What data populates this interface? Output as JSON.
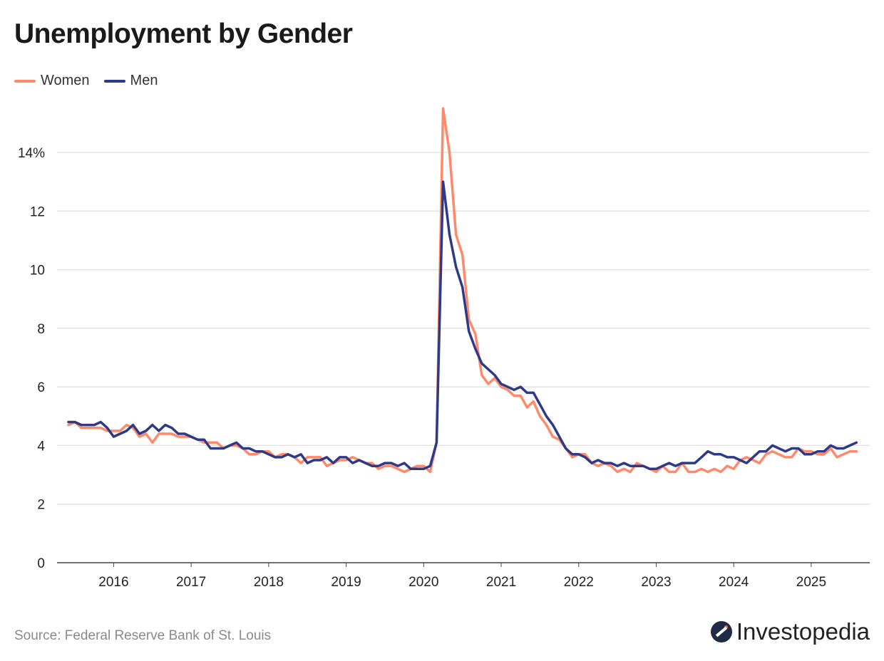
{
  "chart_data": {
    "type": "line",
    "title": "Unemployment by Gender",
    "xlabel": "",
    "ylabel": "",
    "ylim": [
      0,
      16
    ],
    "yticks": [
      0,
      2,
      4,
      6,
      8,
      10,
      12,
      14
    ],
    "ytick_labels": [
      "0",
      "2",
      "4",
      "6",
      "8",
      "10",
      "12",
      "14%"
    ],
    "xtick_labels": [
      "2016",
      "2017",
      "2018",
      "2019",
      "2020",
      "2021",
      "2022",
      "2023",
      "2024",
      "2025"
    ],
    "x_start": "2015-06",
    "x_frequency": "monthly",
    "grid": "horizontal",
    "legend": "top-left",
    "series": [
      {
        "name": "Women",
        "color": "#FF8A6B",
        "values": [
          4.7,
          4.8,
          4.6,
          4.6,
          4.6,
          4.6,
          4.5,
          4.5,
          4.5,
          4.7,
          4.6,
          4.3,
          4.4,
          4.1,
          4.4,
          4.4,
          4.4,
          4.3,
          4.3,
          4.3,
          4.2,
          4.1,
          4.1,
          4.1,
          3.9,
          4.0,
          4.0,
          3.9,
          3.7,
          3.7,
          3.8,
          3.8,
          3.6,
          3.7,
          3.7,
          3.6,
          3.4,
          3.6,
          3.6,
          3.6,
          3.3,
          3.4,
          3.5,
          3.5,
          3.6,
          3.5,
          3.4,
          3.4,
          3.2,
          3.3,
          3.3,
          3.2,
          3.1,
          3.2,
          3.3,
          3.3,
          3.1,
          4.1,
          15.5,
          14.0,
          11.2,
          10.5,
          8.3,
          7.8,
          6.4,
          6.1,
          6.3,
          6.0,
          5.9,
          5.7,
          5.7,
          5.3,
          5.5,
          5.0,
          4.7,
          4.3,
          4.2,
          3.9,
          3.6,
          3.7,
          3.7,
          3.4,
          3.3,
          3.4,
          3.3,
          3.1,
          3.2,
          3.1,
          3.4,
          3.3,
          3.2,
          3.1,
          3.3,
          3.1,
          3.1,
          3.4,
          3.1,
          3.1,
          3.2,
          3.1,
          3.2,
          3.1,
          3.3,
          3.2,
          3.5,
          3.6,
          3.5,
          3.4,
          3.7,
          3.8,
          3.7,
          3.6,
          3.6,
          3.9,
          3.8,
          3.8,
          3.7,
          3.7,
          3.9,
          3.6,
          3.7,
          3.8,
          3.8
        ]
      },
      {
        "name": "Men",
        "color": "#2E3A87",
        "values": [
          4.8,
          4.8,
          4.7,
          4.7,
          4.7,
          4.8,
          4.6,
          4.3,
          4.4,
          4.5,
          4.7,
          4.4,
          4.5,
          4.7,
          4.5,
          4.7,
          4.6,
          4.4,
          4.4,
          4.3,
          4.2,
          4.2,
          3.9,
          3.9,
          3.9,
          4.0,
          4.1,
          3.9,
          3.9,
          3.8,
          3.8,
          3.7,
          3.6,
          3.6,
          3.7,
          3.6,
          3.7,
          3.4,
          3.5,
          3.5,
          3.6,
          3.4,
          3.6,
          3.6,
          3.4,
          3.5,
          3.4,
          3.3,
          3.3,
          3.4,
          3.4,
          3.3,
          3.4,
          3.2,
          3.2,
          3.2,
          3.3,
          4.1,
          13.0,
          11.2,
          10.1,
          9.4,
          7.9,
          7.3,
          6.8,
          6.6,
          6.4,
          6.1,
          6.0,
          5.9,
          6.0,
          5.8,
          5.8,
          5.4,
          5.0,
          4.7,
          4.3,
          3.9,
          3.7,
          3.7,
          3.6,
          3.4,
          3.5,
          3.4,
          3.4,
          3.3,
          3.4,
          3.3,
          3.3,
          3.3,
          3.2,
          3.2,
          3.3,
          3.4,
          3.3,
          3.4,
          3.4,
          3.4,
          3.6,
          3.8,
          3.7,
          3.7,
          3.6,
          3.6,
          3.5,
          3.4,
          3.6,
          3.8,
          3.8,
          4.0,
          3.9,
          3.8,
          3.9,
          3.9,
          3.7,
          3.7,
          3.8,
          3.8,
          4.0,
          3.9,
          3.9,
          4.0,
          4.1
        ]
      }
    ]
  },
  "footer": {
    "source": "Source: Federal Reserve Bank of St. Louis",
    "logo_text": "Investopedia"
  }
}
